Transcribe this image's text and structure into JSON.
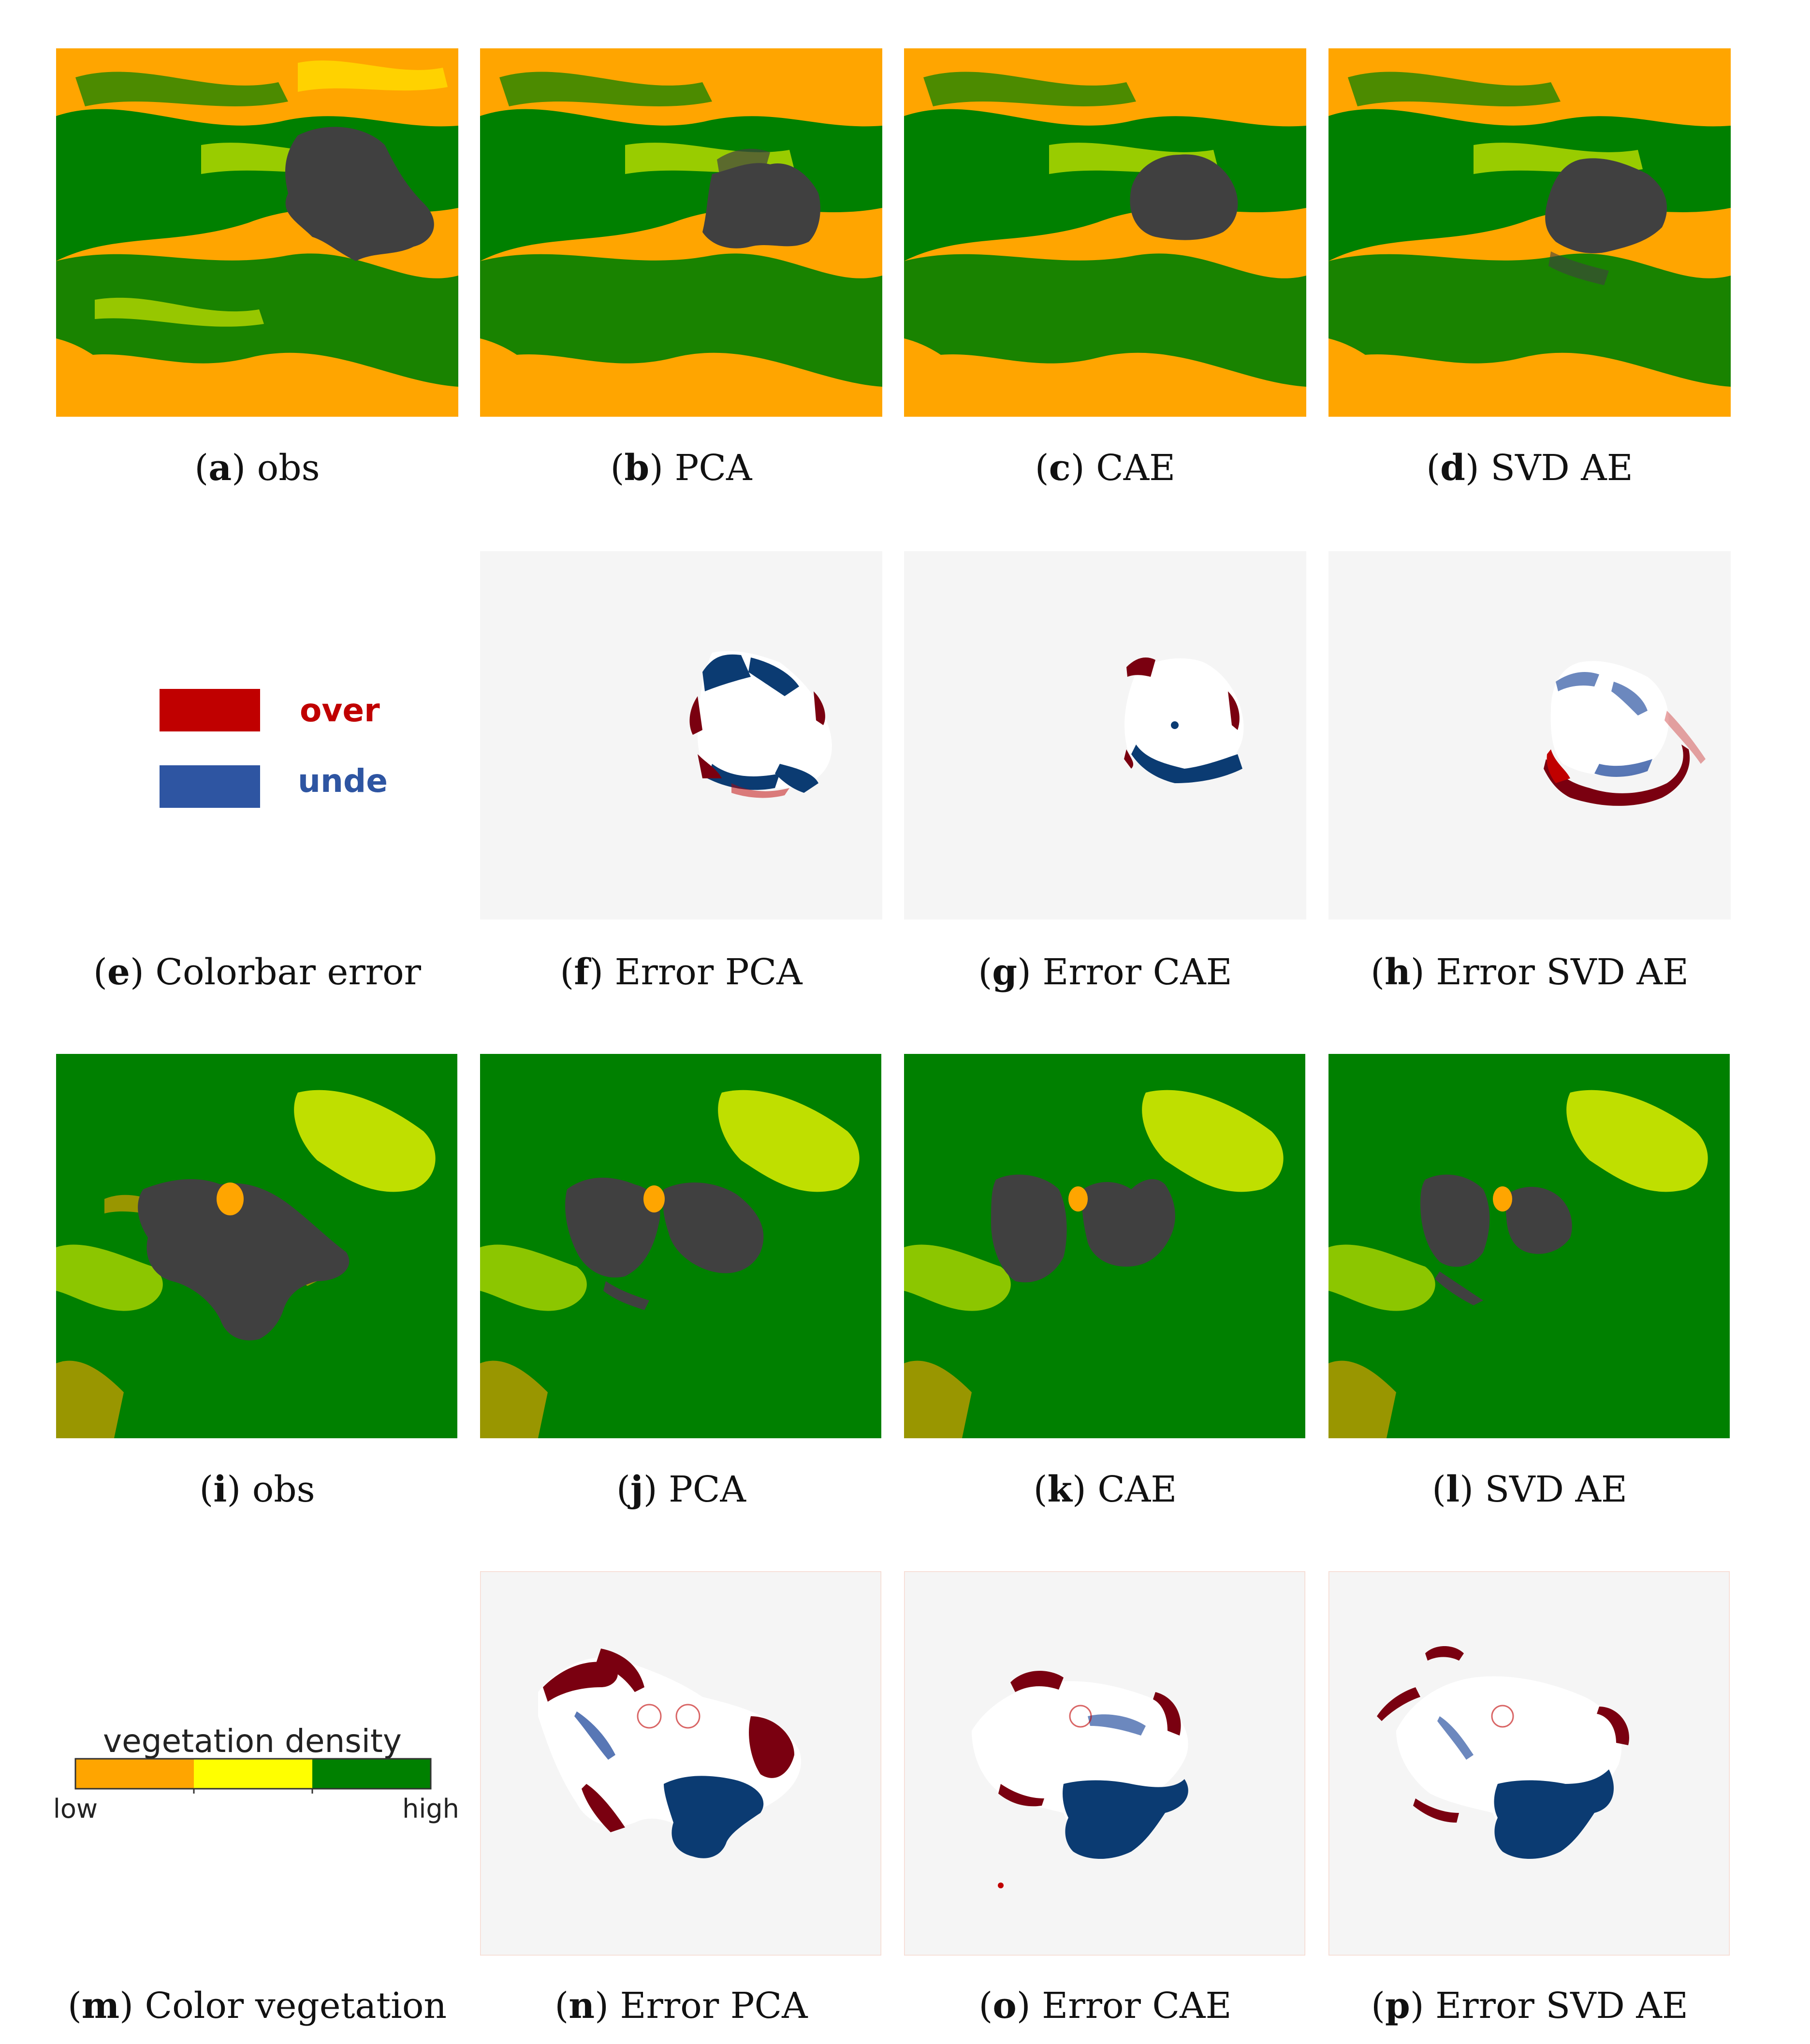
{
  "figure": {
    "panels": [
      {
        "id": "a",
        "kind": "vegetation",
        "text": "obs"
      },
      {
        "id": "b",
        "kind": "vegetation",
        "text": "PCA"
      },
      {
        "id": "c",
        "kind": "vegetation",
        "text": "CAE"
      },
      {
        "id": "d",
        "kind": "vegetation",
        "text": "SVD AE"
      },
      {
        "id": "e",
        "kind": "legend-error",
        "text": "Colorbar error"
      },
      {
        "id": "f",
        "kind": "error",
        "text": "Error PCA"
      },
      {
        "id": "g",
        "kind": "error",
        "text": "Error CAE"
      },
      {
        "id": "h",
        "kind": "error",
        "text": "Error SVD AE"
      },
      {
        "id": "i",
        "kind": "vegetation",
        "text": "obs"
      },
      {
        "id": "j",
        "kind": "vegetation",
        "text": "PCA"
      },
      {
        "id": "k",
        "kind": "vegetation",
        "text": "CAE"
      },
      {
        "id": "l",
        "kind": "vegetation",
        "text": "SVD AE"
      },
      {
        "id": "m",
        "kind": "legend-vegetation",
        "text": "Color vegetation"
      },
      {
        "id": "n",
        "kind": "error",
        "text": "Error PCA"
      },
      {
        "id": "o",
        "kind": "error",
        "text": "Error CAE"
      },
      {
        "id": "p",
        "kind": "error",
        "text": "Error SVD AE"
      }
    ],
    "error_legend": {
      "over": "over",
      "under": "under"
    },
    "vegetation_legend": {
      "title": "vegetation density",
      "low": "low",
      "high": "high"
    },
    "colors": {
      "low": "#ffa500",
      "medium": "#ffff00",
      "high": "#008000",
      "burned": "#404040",
      "over": "#c00000",
      "under": "#2e55a2",
      "over_dark": "#7a0010",
      "under_dark": "#0b3b72",
      "error_bg": "#f5f5f5"
    }
  }
}
